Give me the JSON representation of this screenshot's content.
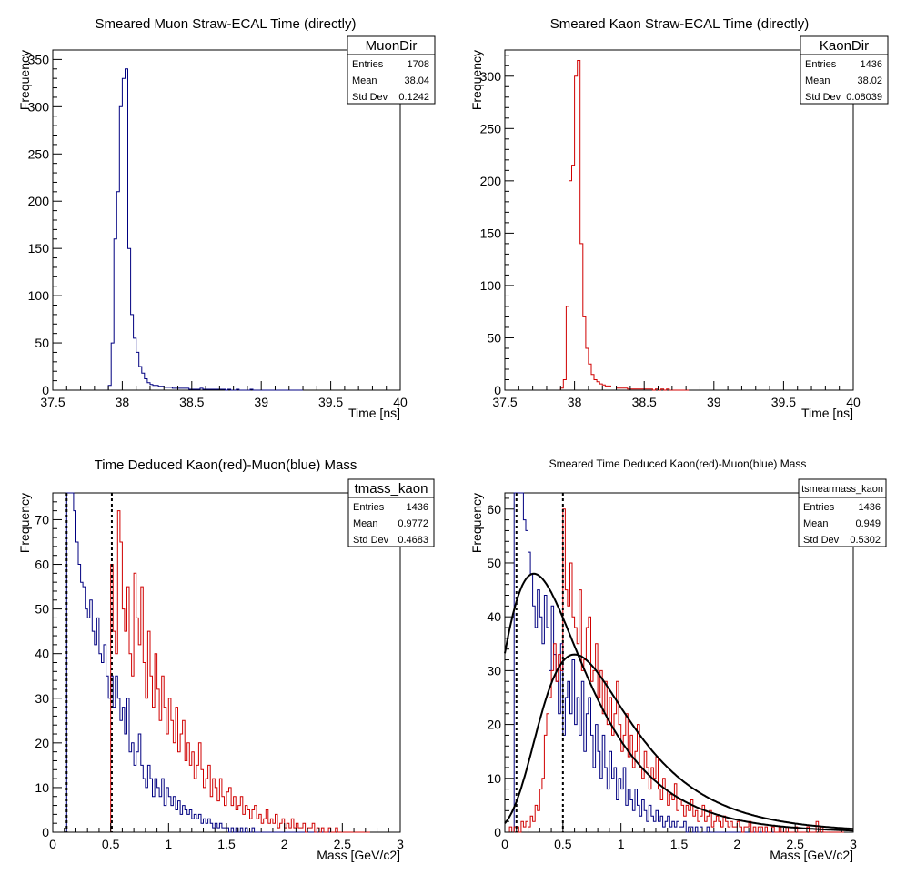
{
  "chart_data": [
    {
      "type": "histogram",
      "title": "Smeared Muon Straw-ECAL Time (directly)",
      "xlabel": "Time [ns]",
      "ylabel": "Frequency",
      "xlim": [
        37.5,
        40
      ],
      "ylim": [
        0,
        360
      ],
      "xticks": [
        "37.5",
        "38",
        "38.5",
        "39",
        "39.5",
        "40"
      ],
      "yticks": [
        "0",
        "50",
        "100",
        "150",
        "200",
        "250",
        "300",
        "350"
      ],
      "stats": {
        "name": "MuonDir",
        "labels": [
          "Entries",
          "Mean",
          "Std Dev"
        ],
        "values": [
          "1708",
          "38.04",
          "0.1242"
        ]
      },
      "series": [
        {
          "color": "#000080",
          "bin_start": 37.9,
          "bin_width": 0.02,
          "values": [
            5,
            50,
            160,
            210,
            300,
            330,
            340,
            150,
            80,
            55,
            40,
            25,
            18,
            12,
            8,
            6,
            5,
            5,
            4,
            4,
            3,
            3,
            3,
            2,
            2,
            2,
            2,
            2,
            2,
            1,
            1,
            1,
            1,
            2,
            1,
            1,
            1,
            1,
            1,
            1,
            1,
            1,
            0,
            1,
            0,
            0,
            1,
            0,
            0,
            0,
            0,
            1,
            0,
            0,
            0,
            0,
            0,
            0,
            0,
            0,
            0,
            0,
            0,
            0,
            0,
            0,
            0,
            0,
            0,
            0
          ]
        }
      ]
    },
    {
      "type": "histogram",
      "title": "Smeared Kaon Straw-ECAL Time (directly)",
      "xlabel": "Time [ns]",
      "ylabel": "Frequency",
      "xlim": [
        37.5,
        40
      ],
      "ylim": [
        0,
        325
      ],
      "xticks": [
        "37.5",
        "38",
        "38.5",
        "39",
        "39.5",
        "40"
      ],
      "yticks": [
        "0",
        "50",
        "100",
        "150",
        "200",
        "250",
        "300"
      ],
      "stats": {
        "name": "KaonDir",
        "labels": [
          "Entries",
          "Mean",
          "Std Dev"
        ],
        "values": [
          "1436",
          "38.02",
          "0.08039"
        ]
      },
      "series": [
        {
          "color": "#d00000",
          "bin_start": 37.9,
          "bin_width": 0.02,
          "values": [
            2,
            10,
            80,
            200,
            215,
            300,
            315,
            140,
            70,
            40,
            25,
            15,
            10,
            8,
            6,
            5,
            4,
            4,
            3,
            3,
            2,
            2,
            2,
            2,
            1,
            1,
            1,
            1,
            1,
            1,
            1,
            1,
            1,
            0,
            1,
            0,
            1,
            0,
            1,
            0,
            0,
            0,
            0,
            0,
            0,
            0
          ]
        }
      ]
    },
    {
      "type": "histogram",
      "title": "Time Deduced Kaon(red)-Muon(blue) Mass",
      "xlabel": "Mass [GeV/c2]",
      "ylabel": "Frequency",
      "xlim": [
        0,
        3
      ],
      "ylim": [
        0,
        76
      ],
      "xticks": [
        "0",
        "0.5",
        "1",
        "1.5",
        "2",
        "2.5",
        "3"
      ],
      "yticks": [
        "0",
        "10",
        "20",
        "30",
        "40",
        "50",
        "60",
        "70"
      ],
      "stats": {
        "name": "tmass_kaon",
        "labels": [
          "Entries",
          "Mean",
          "Std Dev"
        ],
        "values": [
          "1436",
          "0.9772",
          "0.4683"
        ]
      },
      "vlines": [
        0.12,
        0.51
      ],
      "series": [
        {
          "color": "#000080",
          "bin_start": 0.12,
          "bin_width": 0.02,
          "values": [
            76,
            76,
            76,
            72,
            65,
            60,
            56,
            55,
            50,
            48,
            52,
            45,
            42,
            48,
            40,
            38,
            42,
            35,
            30,
            35,
            28,
            35,
            30,
            25,
            28,
            22,
            30,
            18,
            20,
            15,
            18,
            22,
            15,
            12,
            10,
            15,
            12,
            8,
            12,
            10,
            8,
            12,
            6,
            10,
            8,
            6,
            8,
            5,
            7,
            4,
            6,
            5,
            4,
            5,
            3,
            4,
            3,
            4,
            2,
            3,
            2,
            3,
            2,
            1,
            2,
            1,
            2,
            1,
            1,
            1,
            0,
            1,
            0,
            1,
            0,
            1,
            0,
            1,
            0,
            0,
            1,
            0,
            0,
            0,
            0,
            0,
            0,
            0,
            0,
            0,
            0,
            0,
            0,
            0,
            0,
            0,
            0,
            0,
            0,
            0,
            0,
            0,
            0,
            0,
            0,
            0,
            0,
            0,
            0,
            0,
            0,
            0,
            0,
            0,
            0,
            0
          ]
        },
        {
          "color": "#d00000",
          "bin_start": 0.5,
          "bin_width": 0.02,
          "values": [
            60,
            45,
            40,
            72,
            65,
            50,
            45,
            55,
            40,
            35,
            58,
            48,
            42,
            55,
            38,
            30,
            45,
            35,
            28,
            40,
            32,
            25,
            35,
            28,
            22,
            30,
            25,
            20,
            28,
            18,
            22,
            25,
            16,
            20,
            15,
            18,
            12,
            15,
            20,
            14,
            10,
            12,
            15,
            8,
            12,
            10,
            7,
            12,
            8,
            6,
            9,
            10,
            6,
            8,
            5,
            6,
            8,
            4,
            6,
            5,
            3,
            5,
            6,
            3,
            4,
            2,
            3,
            5,
            2,
            3,
            2,
            4,
            1,
            2,
            3,
            1,
            2,
            1,
            3,
            1,
            2,
            1,
            1,
            2,
            0,
            1,
            1,
            2,
            0,
            1,
            0,
            1,
            0,
            0,
            1,
            0,
            0,
            1,
            0,
            0,
            0,
            0,
            0,
            0,
            0,
            0,
            0,
            0,
            0,
            0,
            0,
            0
          ]
        }
      ]
    },
    {
      "type": "histogram",
      "title": "Smeared Time Deduced Kaon(red)-Muon(blue) Mass",
      "xlabel": "Mass [GeV/c2]",
      "ylabel": "Frequency",
      "xlim": [
        0,
        3
      ],
      "ylim": [
        0,
        63
      ],
      "xticks": [
        "0",
        "0.5",
        "1",
        "1.5",
        "2",
        "2.5",
        "3"
      ],
      "yticks": [
        "0",
        "10",
        "20",
        "30",
        "40",
        "50",
        "60"
      ],
      "stats": {
        "name": "tsmearmass_kaon",
        "labels": [
          "Entries",
          "Mean",
          "Std Dev"
        ],
        "values": [
          "1436",
          "0.949",
          "0.5302"
        ]
      },
      "vlines": [
        0.1,
        0.5
      ],
      "series": [
        {
          "color": "#000080",
          "bin_start": 0.08,
          "bin_width": 0.02,
          "values": [
            63,
            63,
            63,
            63,
            58,
            56,
            52,
            48,
            42,
            38,
            45,
            40,
            35,
            44,
            38,
            30,
            42,
            33,
            28,
            22,
            35,
            18,
            25,
            28,
            22,
            32,
            20,
            25,
            18,
            28,
            15,
            22,
            25,
            18,
            12,
            20,
            15,
            10,
            18,
            12,
            8,
            15,
            10,
            12,
            6,
            10,
            8,
            12,
            5,
            8,
            6,
            4,
            8,
            5,
            3,
            6,
            4,
            2,
            5,
            3,
            2,
            4,
            2,
            3,
            1,
            2,
            3,
            1,
            2,
            1,
            2,
            1,
            1,
            2,
            0,
            1,
            1,
            0,
            1,
            0,
            1,
            0,
            0,
            1,
            0,
            0,
            0,
            0,
            0,
            0,
            0,
            0,
            0,
            0,
            0,
            0,
            0,
            0,
            0,
            0,
            0,
            0,
            0,
            0,
            0,
            0,
            0,
            0,
            0,
            0,
            0,
            0,
            0,
            0,
            0,
            0
          ]
        },
        {
          "color": "#d00000",
          "bin_start": 0.04,
          "bin_width": 0.02,
          "values": [
            1,
            0,
            1,
            1,
            0,
            2,
            1,
            2,
            1,
            3,
            2,
            5,
            4,
            8,
            10,
            18,
            22,
            25,
            30,
            35,
            28,
            33,
            30,
            60,
            45,
            42,
            50,
            40,
            38,
            35,
            45,
            30,
            32,
            38,
            40,
            28,
            30,
            35,
            25,
            30,
            22,
            28,
            20,
            25,
            18,
            22,
            28,
            20,
            15,
            18,
            22,
            14,
            18,
            12,
            15,
            20,
            12,
            10,
            15,
            12,
            8,
            12,
            10,
            14,
            8,
            6,
            10,
            8,
            5,
            7,
            6,
            9,
            4,
            6,
            5,
            3,
            5,
            4,
            6,
            3,
            4,
            2,
            3,
            5,
            2,
            3,
            4,
            1,
            2,
            3,
            2,
            1,
            3,
            2,
            1,
            2,
            1,
            1,
            2,
            1,
            0,
            1,
            1,
            2,
            0,
            1,
            0,
            1,
            1,
            0,
            1,
            0,
            0,
            1,
            0,
            0,
            1,
            0,
            0,
            1,
            0,
            0,
            0,
            1,
            0,
            0,
            0,
            0,
            1,
            0,
            0,
            0,
            2,
            0,
            1,
            0,
            0,
            0,
            0,
            0,
            0,
            0,
            0,
            0
          ]
        }
      ],
      "fits": [
        {
          "color": "#000000",
          "peak": 48,
          "mode": 0.25,
          "scale": 0.55
        },
        {
          "color": "#000000",
          "peak": 33,
          "mode": 0.6,
          "scale": 0.6
        }
      ]
    }
  ]
}
